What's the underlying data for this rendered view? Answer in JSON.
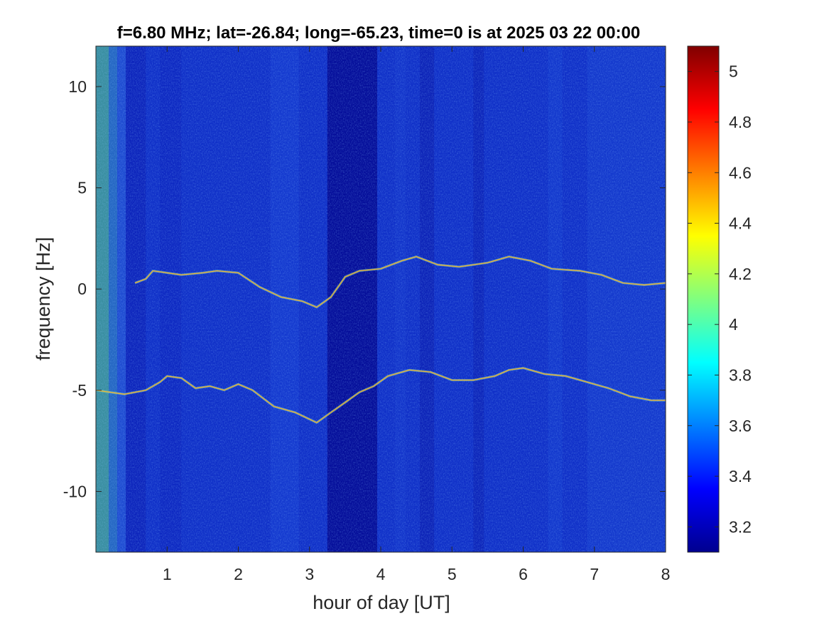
{
  "chart_data": {
    "type": "heatmap",
    "title": "f=6.80 MHz;  lat=-26.84; long=-65.23, time=0 is at 2025 03 22 00:00",
    "xlabel": "hour of day [UT]",
    "ylabel": "frequency [Hz]",
    "xlim": [
      0,
      8
    ],
    "ylim": [
      -13,
      12
    ],
    "x_ticks": [
      1,
      2,
      3,
      4,
      5,
      6,
      7,
      8
    ],
    "x_tick_labels": [
      "1",
      "2",
      "3",
      "4",
      "5",
      "6",
      "7",
      "8"
    ],
    "y_ticks": [
      10,
      5,
      0,
      -5,
      -10
    ],
    "y_tick_labels": [
      "10",
      "5",
      "0",
      "-5",
      "-10"
    ],
    "colorbar": {
      "colormap": "jet",
      "clim": [
        3.1,
        5.1
      ],
      "ticks": [
        5,
        4.8,
        4.6,
        4.4,
        4.2,
        4,
        3.8,
        3.6,
        3.4,
        3.2
      ],
      "tick_labels": [
        "5",
        "4.8",
        "4.6",
        "4.4",
        "4.2",
        "4",
        "3.8",
        "3.6",
        "3.4",
        "3.2"
      ]
    },
    "series": [
      {
        "x": [
          0.55,
          0.7,
          0.8,
          1.0,
          1.2,
          1.5,
          1.7,
          2.0,
          2.3,
          2.6,
          2.9,
          3.1,
          3.3,
          3.5,
          3.7,
          4.0,
          4.3,
          4.5,
          4.8,
          5.1,
          5.5,
          5.8,
          6.1,
          6.4,
          6.8,
          7.1,
          7.4,
          7.7,
          8.0
        ],
        "y": [
          0.3,
          0.5,
          0.9,
          0.8,
          0.7,
          0.8,
          0.9,
          0.8,
          0.1,
          -0.4,
          -0.6,
          -0.9,
          -0.4,
          0.6,
          0.9,
          1.0,
          1.4,
          1.6,
          1.2,
          1.1,
          1.3,
          1.6,
          1.4,
          1.0,
          0.9,
          0.7,
          0.3,
          0.2,
          0.3
        ]
      },
      {
        "x": [
          0.0,
          0.4,
          0.7,
          0.9,
          1.0,
          1.2,
          1.4,
          1.6,
          1.8,
          2.0,
          2.2,
          2.5,
          2.8,
          3.1,
          3.3,
          3.5,
          3.7,
          3.9,
          4.1,
          4.4,
          4.7,
          5.0,
          5.3,
          5.6,
          5.8,
          6.0,
          6.3,
          6.6,
          6.9,
          7.2,
          7.5,
          7.8,
          8.0
        ],
        "y": [
          -5.0,
          -5.2,
          -5.0,
          -4.6,
          -4.3,
          -4.4,
          -4.9,
          -4.8,
          -5.0,
          -4.7,
          -5.0,
          -5.8,
          -6.1,
          -6.6,
          -6.1,
          -5.6,
          -5.1,
          -4.8,
          -4.3,
          -4.0,
          -4.1,
          -4.5,
          -4.5,
          -4.3,
          -4.0,
          -3.9,
          -4.2,
          -4.3,
          -4.6,
          -4.9,
          -5.3,
          -5.5,
          -5.5
        ]
      }
    ]
  }
}
